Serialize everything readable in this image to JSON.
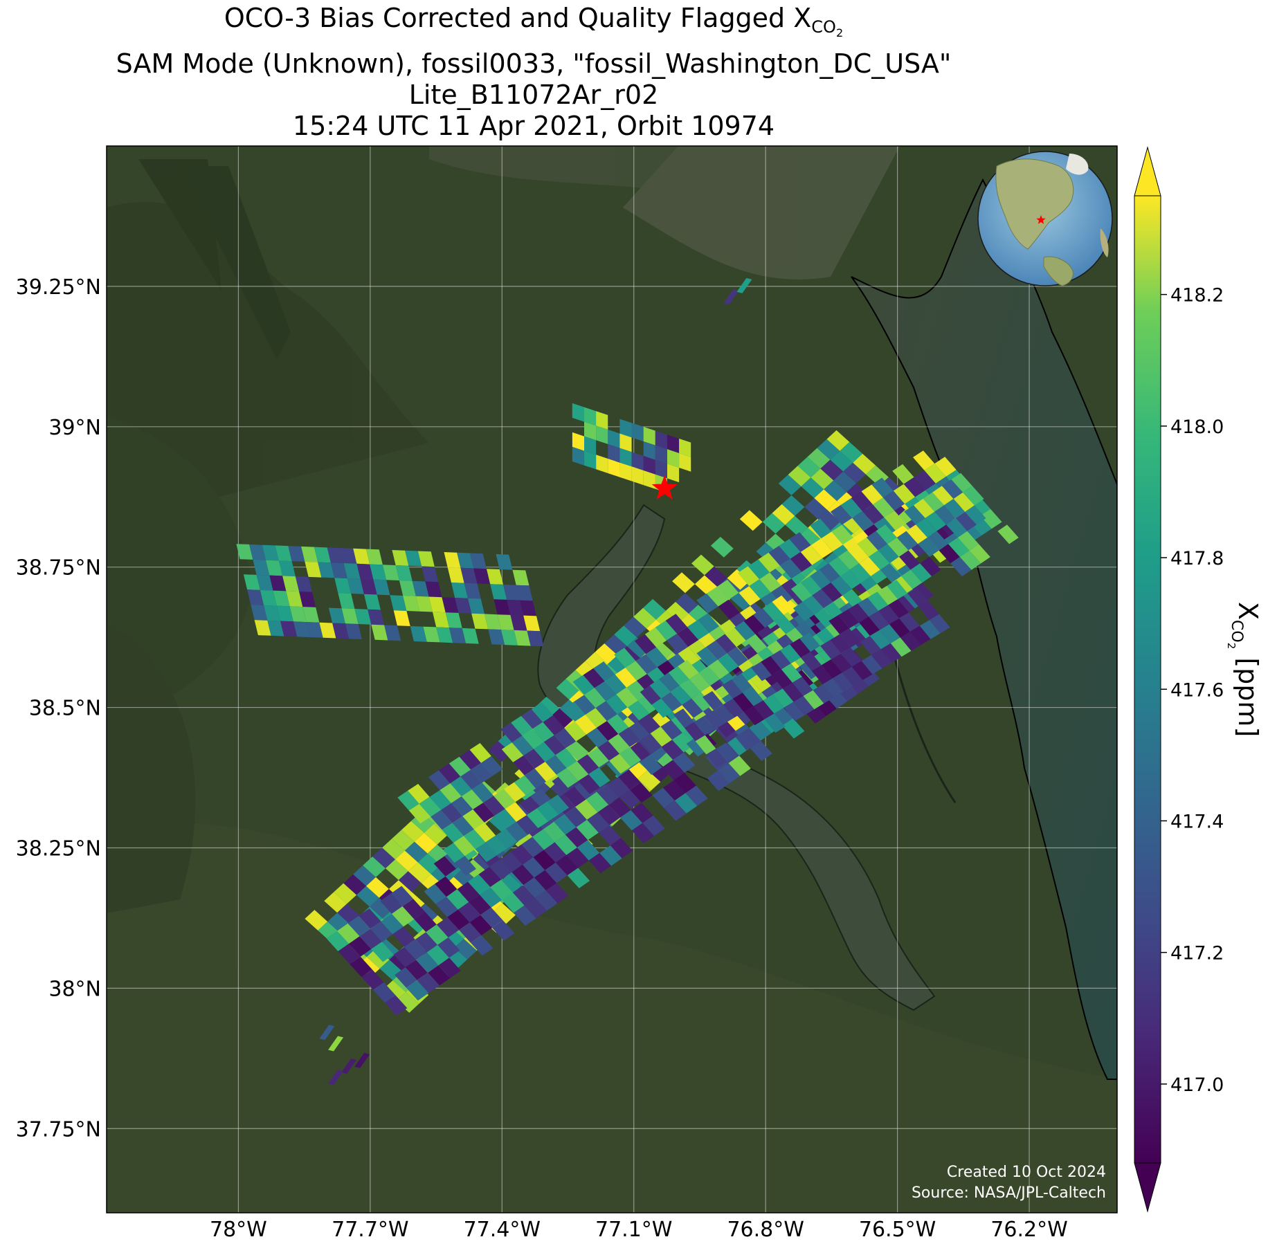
{
  "title": {
    "line1_prefix": "OCO-3 Bias Corrected and Quality Flagged X",
    "line1_sub": "CO",
    "line1_subsub": "2",
    "line2": "SAM Mode (Unknown), fossil0033, \"fossil_Washington_DC_USA\"",
    "line3": "Lite_B11072Ar_r02",
    "line4": "15:24 UTC 11 Apr 2021, Orbit 10974"
  },
  "map": {
    "lon_range": [
      -78.3,
      -76.0
    ],
    "lat_range": [
      37.6,
      39.5
    ],
    "lon_ticks": [
      -78.0,
      -77.7,
      -77.4,
      -77.1,
      -76.8,
      -76.5,
      -76.2
    ],
    "lon_tick_labels": [
      "78°W",
      "77.7°W",
      "77.4°W",
      "77.1°W",
      "76.8°W",
      "76.5°W",
      "76.2°W"
    ],
    "lat_ticks": [
      39.25,
      39.0,
      38.75,
      38.5,
      38.25,
      38.0,
      37.75
    ],
    "lat_tick_labels": [
      "39.25°N",
      "39°N",
      "38.75°N",
      "38.5°N",
      "38.25°N",
      "38°N",
      "37.75°N"
    ],
    "gridlines": true,
    "target": {
      "name": "fossil_Washington_DC_USA",
      "lon": -77.03,
      "lat": 38.89,
      "marker": "red-star"
    },
    "basemap": "satellite imagery",
    "inset_globe": {
      "placement": "top-right",
      "marker": "red-star",
      "center_lon": -77.0,
      "center_lat": 38.9
    }
  },
  "colorbar": {
    "colormap": "viridis",
    "vmin": 416.88,
    "vmax": 418.35,
    "extend": "both",
    "ticks": [
      417.0,
      417.2,
      417.4,
      417.6,
      417.8,
      418.0,
      418.2
    ],
    "tick_labels": [
      "417.0",
      "417.2",
      "417.4",
      "417.6",
      "417.8",
      "418.0",
      "418.2"
    ],
    "label_prefix": "X",
    "label_sub": "CO",
    "label_subsub": "2",
    "label_suffix": " [ppm]"
  },
  "credits": {
    "created": "Created 10 Oct 2024",
    "source": "Source: NASA/JPL-Caltech"
  },
  "chart_data": {
    "type": "heatmap",
    "variable": "XCO2 [ppm]",
    "swaths": [
      {
        "lon_start": -77.73,
        "lat_start": 38.04,
        "lon_end": -76.52,
        "lat_end": 38.91,
        "rows": 55,
        "cols": 8,
        "band": "high"
      },
      {
        "lon_start": -77.72,
        "lat_start": 38.02,
        "lon_end": -76.62,
        "lat_end": 38.62,
        "rows": 45,
        "cols": 6,
        "band": "low"
      },
      {
        "lon_start": -77.56,
        "lat_start": 38.27,
        "lon_end": -76.34,
        "lat_end": 38.9,
        "rows": 52,
        "cols": 6,
        "band": "mixed"
      },
      {
        "lon_start": -77.02,
        "lat_start": 38.47,
        "lon_end": -76.29,
        "lat_end": 38.86,
        "rows": 34,
        "cols": 5,
        "band": "mixed"
      },
      {
        "lon_start": -76.96,
        "lat_start": 38.44,
        "lon_end": -76.43,
        "lat_end": 38.69,
        "rows": 24,
        "cols": 4,
        "band": "low"
      },
      {
        "lon_start": -77.98,
        "lat_start": 38.71,
        "lon_end": -77.33,
        "lat_end": 38.69,
        "rows": 22,
        "cols": 6,
        "band": "mixed"
      },
      {
        "lon_start": -77.24,
        "lat_start": 38.99,
        "lon_end": -76.97,
        "lat_end": 38.92,
        "rows": 10,
        "cols": 4,
        "band": "high"
      }
    ],
    "isolated_soundings": [
      {
        "lon": -76.88,
        "lat": 39.23,
        "value": 417.1
      },
      {
        "lon": -76.85,
        "lat": 39.25,
        "value": 417.7
      },
      {
        "lon": -77.8,
        "lat": 37.92,
        "value": 417.3
      },
      {
        "lon": -77.78,
        "lat": 37.9,
        "value": 418.1
      },
      {
        "lon": -77.75,
        "lat": 37.86,
        "value": 417.0
      },
      {
        "lon": -77.72,
        "lat": 37.87,
        "value": 416.95
      },
      {
        "lon": -77.78,
        "lat": 37.84,
        "value": 417.05
      }
    ]
  }
}
